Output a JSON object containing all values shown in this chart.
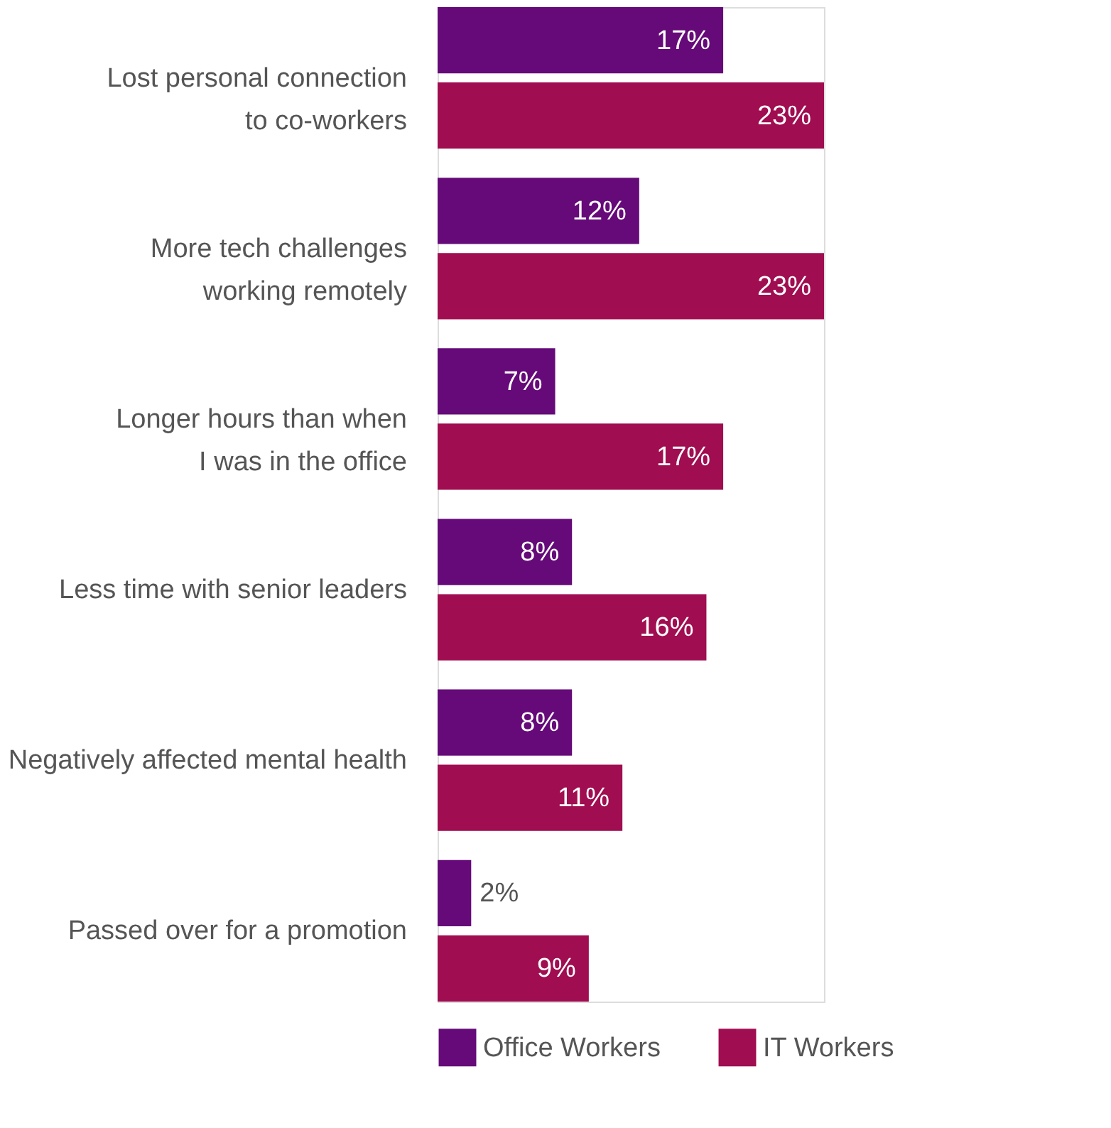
{
  "chart_data": {
    "type": "bar",
    "orientation": "horizontal",
    "categories": [
      "Lost personal connection\nto co-workers",
      "More tech challenges\nworking remotely",
      "Longer hours than when\nI was in the office",
      "Less time with senior leaders",
      "Negatively affected mental health",
      "Passed over for a promotion"
    ],
    "series": [
      {
        "name": "Office Workers",
        "color": "#650a78",
        "values": [
          17,
          12,
          7,
          8,
          8,
          2
        ],
        "value_labels": [
          "17%",
          "12%",
          "7%",
          "8%",
          "8%",
          "2%"
        ]
      },
      {
        "name": "IT Workers",
        "color": "#a00d50",
        "values": [
          23,
          23,
          17,
          16,
          11,
          9
        ],
        "value_labels": [
          "23%",
          "23%",
          "17%",
          "16%",
          "11%",
          "9%"
        ]
      }
    ],
    "legend": "bottom",
    "grid": false
  }
}
